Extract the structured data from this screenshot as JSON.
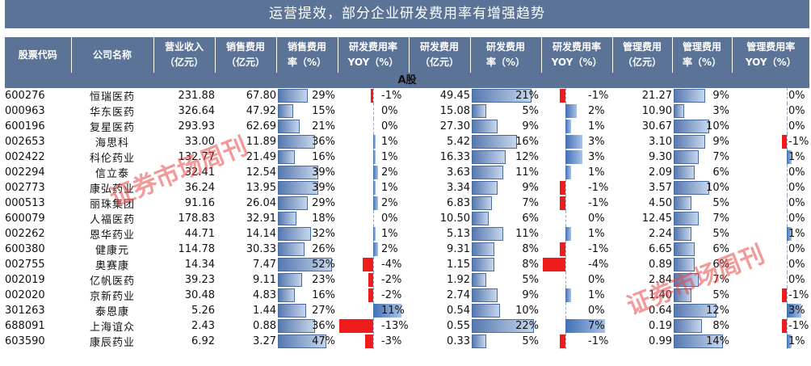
{
  "title": "运营提效，部分企业研发费用率有增强趋势",
  "watermark_text": "证券市场周刊",
  "colors": {
    "header_bg": "#5b7396",
    "bar_blue": "#5678b0",
    "negative_red": "#ee1c1c"
  },
  "chart_data": {
    "type": "table",
    "section": "A股",
    "columns": [
      [
        "股票代码"
      ],
      [
        "公司名称"
      ],
      [
        "营业收入",
        "（亿元）"
      ],
      [
        "销售费用",
        "（亿元）"
      ],
      [
        "销售费用",
        "率（%）"
      ],
      [
        "研发费用率",
        "YOY（%）"
      ],
      [
        "研发费用",
        "（亿元）"
      ],
      [
        "研发费用",
        "率（%）"
      ],
      [
        "研发费用率",
        "YOY（%）"
      ],
      [
        "管理费用",
        "（亿元）"
      ],
      [
        "管理费用",
        "率（%）"
      ],
      [
        "管理费用率",
        "YOY（%）"
      ]
    ],
    "rows": [
      {
        "code": "600276",
        "name": "恒瑞医药",
        "revenue": "231.88",
        "sales_exp": "67.80",
        "sales_rate": 29,
        "yoy1": -1,
        "rd_exp": "49.45",
        "rd_rate": 21,
        "yoy2": -1,
        "mgmt_exp": "21.27",
        "mgmt_rate": 9,
        "yoy3": 0
      },
      {
        "code": "000963",
        "name": "华东医药",
        "revenue": "326.64",
        "sales_exp": "47.92",
        "sales_rate": 15,
        "yoy1": 0,
        "rd_exp": "15.08",
        "rd_rate": 5,
        "yoy2": 2,
        "mgmt_exp": "10.90",
        "mgmt_rate": 3,
        "yoy3": 0
      },
      {
        "code": "600196",
        "name": "复星医药",
        "revenue": "293.93",
        "sales_exp": "62.69",
        "sales_rate": 21,
        "yoy1": 0,
        "rd_exp": "27.30",
        "rd_rate": 9,
        "yoy2": 1,
        "mgmt_exp": "30.67",
        "mgmt_rate": 10,
        "yoy3": 0
      },
      {
        "code": "002653",
        "name": "海思科",
        "revenue": "33.00",
        "sales_exp": "11.89",
        "sales_rate": 36,
        "yoy1": 1,
        "rd_exp": "5.42",
        "rd_rate": 16,
        "yoy2": 3,
        "mgmt_exp": "3.10",
        "mgmt_rate": 9,
        "yoy3": -1
      },
      {
        "code": "002422",
        "name": "科伦药业",
        "revenue": "132.77",
        "sales_exp": "21.49",
        "sales_rate": 16,
        "yoy1": 1,
        "rd_exp": "16.33",
        "rd_rate": 12,
        "yoy2": 3,
        "mgmt_exp": "9.30",
        "mgmt_rate": 7,
        "yoy3": 1
      },
      {
        "code": "002294",
        "name": "信立泰",
        "revenue": "32.41",
        "sales_exp": "12.54",
        "sales_rate": 39,
        "yoy1": 2,
        "rd_exp": "3.63",
        "rd_rate": 11,
        "yoy2": 1,
        "mgmt_exp": "2.09",
        "mgmt_rate": 6,
        "yoy3": 0
      },
      {
        "code": "002773",
        "name": "康弘药业",
        "revenue": "36.24",
        "sales_exp": "13.95",
        "sales_rate": 39,
        "yoy1": 1,
        "rd_exp": "3.34",
        "rd_rate": 9,
        "yoy2": -1,
        "mgmt_exp": "3.57",
        "mgmt_rate": 10,
        "yoy3": 0
      },
      {
        "code": "000513",
        "name": "丽珠集团",
        "revenue": "91.16",
        "sales_exp": "26.04",
        "sales_rate": 29,
        "yoy1": 2,
        "rd_exp": "6.83",
        "rd_rate": 7,
        "yoy2": -1,
        "mgmt_exp": "4.50",
        "mgmt_rate": 5,
        "yoy3": 0
      },
      {
        "code": "600079",
        "name": "人福医药",
        "revenue": "178.83",
        "sales_exp": "32.91",
        "sales_rate": 18,
        "yoy1": 0,
        "rd_exp": "10.50",
        "rd_rate": 6,
        "yoy2": 0,
        "mgmt_exp": "12.45",
        "mgmt_rate": 7,
        "yoy3": 0
      },
      {
        "code": "002262",
        "name": "恩华药业",
        "revenue": "44.71",
        "sales_exp": "14.14",
        "sales_rate": 32,
        "yoy1": 1,
        "rd_exp": "5.13",
        "rd_rate": 11,
        "yoy2": 1,
        "mgmt_exp": "2.24",
        "mgmt_rate": 5,
        "yoy3": 1
      },
      {
        "code": "600380",
        "name": "健康元",
        "revenue": "114.78",
        "sales_exp": "30.33",
        "sales_rate": 26,
        "yoy1": 2,
        "rd_exp": "9.31",
        "rd_rate": 8,
        "yoy2": -1,
        "mgmt_exp": "6.65",
        "mgmt_rate": 6,
        "yoy3": 0
      },
      {
        "code": "002755",
        "name": "奥赛康",
        "revenue": "14.34",
        "sales_exp": "7.47",
        "sales_rate": 52,
        "yoy1": -4,
        "rd_exp": "1.15",
        "rd_rate": 8,
        "yoy2": -4,
        "mgmt_exp": "0.89",
        "mgmt_rate": 6,
        "yoy3": 0
      },
      {
        "code": "002019",
        "name": "亿帆医药",
        "revenue": "39.23",
        "sales_exp": "9.11",
        "sales_rate": 23,
        "yoy1": -2,
        "rd_exp": "1.92",
        "rd_rate": 5,
        "yoy2": 0,
        "mgmt_exp": "2.84",
        "mgmt_rate": 7,
        "yoy3": 0
      },
      {
        "code": "002020",
        "name": "京新药业",
        "revenue": "30.48",
        "sales_exp": "4.83",
        "sales_rate": 16,
        "yoy1": -2,
        "rd_exp": "2.74",
        "rd_rate": 9,
        "yoy2": 1,
        "mgmt_exp": "1.40",
        "mgmt_rate": 5,
        "yoy3": -1
      },
      {
        "code": "301263",
        "name": "泰恩康",
        "revenue": "5.26",
        "sales_exp": "1.44",
        "sales_rate": 27,
        "yoy1": 11,
        "rd_exp": "0.54",
        "rd_rate": 10,
        "yoy2": 0,
        "mgmt_exp": "0.64",
        "mgmt_rate": 12,
        "yoy3": 3
      },
      {
        "code": "688091",
        "name": "上海谊众",
        "revenue": "2.43",
        "sales_exp": "0.88",
        "sales_rate": 36,
        "yoy1": -13,
        "rd_exp": "0.55",
        "rd_rate": 22,
        "yoy2": 7,
        "mgmt_exp": "0.19",
        "mgmt_rate": 8,
        "yoy3": -1
      },
      {
        "code": "603590",
        "name": "康辰药业",
        "revenue": "6.92",
        "sales_exp": "3.27",
        "sales_rate": 47,
        "yoy1": -3,
        "rd_exp": "0.33",
        "rd_rate": 5,
        "yoy2": -1,
        "mgmt_exp": "0.99",
        "mgmt_rate": 14,
        "yoy3": 1
      }
    ]
  }
}
